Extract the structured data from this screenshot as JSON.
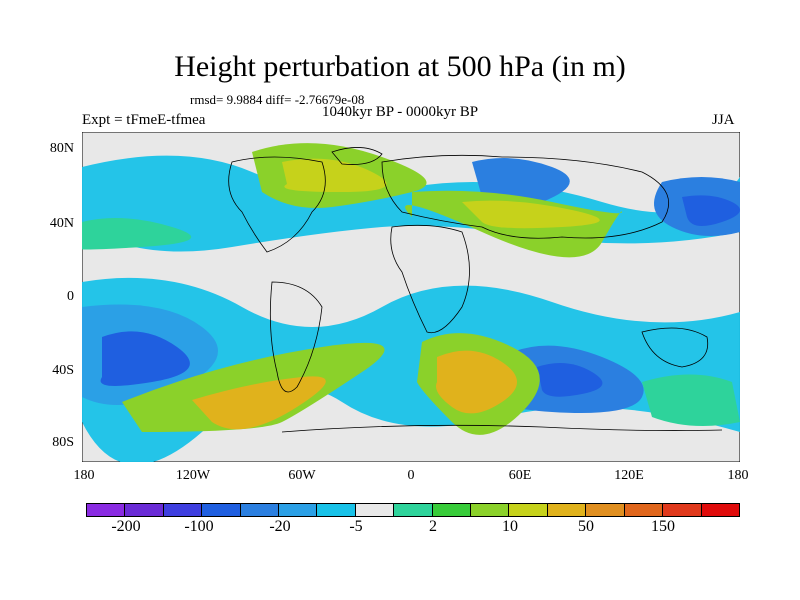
{
  "title": "Height perturbation at 500 hPa (in m)",
  "stats_line": "rmsd= 9.9884 diff= -2.76679e-08",
  "period_line": "1040kyr BP - 0000kyr BP",
  "experiment_label": "Expt = tFmeE-tfmea",
  "season_label": "JJA",
  "y_ticks": [
    "80N",
    "40N",
    "0",
    "40S",
    "80S"
  ],
  "x_ticks": [
    "180",
    "120W",
    "60W",
    "0",
    "60E",
    "120E",
    "180"
  ],
  "colorbar": {
    "colors": [
      "#8a2be2",
      "#6a2bd6",
      "#3f3fe0",
      "#1f5fe0",
      "#2b7fe0",
      "#2ba0e6",
      "#19c2e8",
      "#e8e8e8",
      "#2ed39b",
      "#38cc3a",
      "#8bd12a",
      "#c6d21b",
      "#e0b21c",
      "#e08f20",
      "#e0661c",
      "#e0391c",
      "#e00b0b"
    ],
    "labels": [
      "-200",
      "-100",
      "-20",
      "-5",
      "2",
      "10",
      "50",
      "150"
    ]
  }
}
